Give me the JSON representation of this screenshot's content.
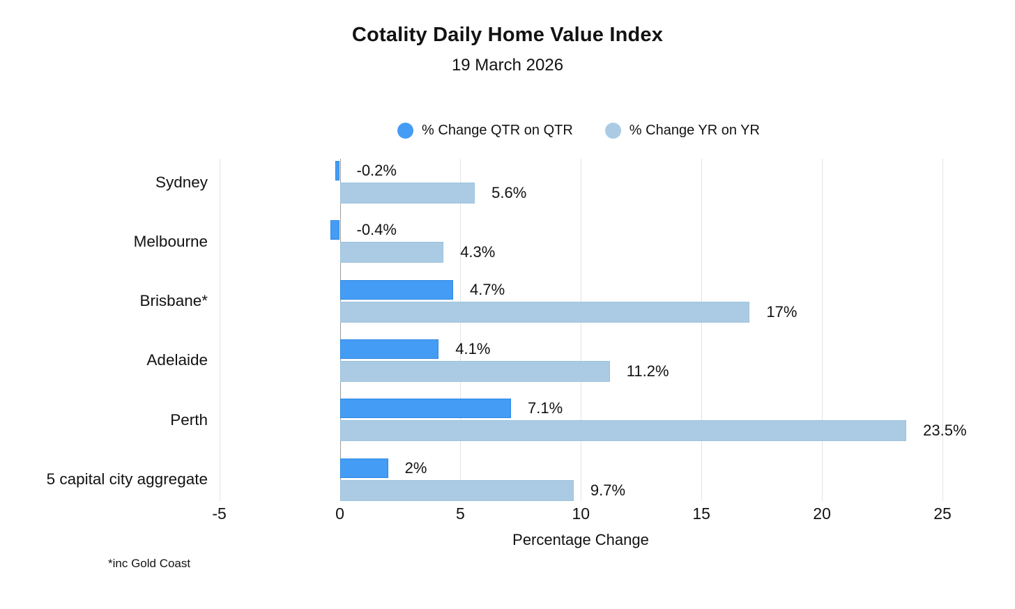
{
  "header": {
    "title": "Cotality Daily Home Value Index",
    "subtitle": "19 March 2026"
  },
  "legend": [
    {
      "label": "% Change QTR on QTR",
      "color": "#459cf4"
    },
    {
      "label": "% Change YR on YR",
      "color": "#aacbe3"
    }
  ],
  "chart_data": {
    "type": "bar",
    "orientation": "horizontal",
    "title": "Cotality Daily Home Value Index",
    "subtitle": "19 March 2026",
    "categories": [
      "Sydney",
      "Melbourne",
      "Brisbane*",
      "Adelaide",
      "Perth",
      "5 capital city aggregate"
    ],
    "series": [
      {
        "name": "% Change QTR on QTR",
        "key": "qtr",
        "color": "#459cf4",
        "border_color": "#2c87e2",
        "values": [
          -0.2,
          -0.4,
          4.7,
          4.1,
          7.1,
          2
        ],
        "labels": [
          "-0.2%",
          "-0.4%",
          "4.7%",
          "4.1%",
          "7.1%",
          "2%"
        ]
      },
      {
        "name": "% Change YR on YR",
        "key": "yr",
        "color": "#aacbe3",
        "border_color": "#9cc2dc",
        "values": [
          5.6,
          4.3,
          17,
          11.2,
          23.5,
          9.7
        ],
        "labels": [
          "5.6%",
          "4.3%",
          "17%",
          "11.2%",
          "23.5%",
          "9.7%"
        ]
      }
    ],
    "xlabel": "Percentage Change",
    "xticks": [
      -5,
      0,
      5,
      10,
      15,
      20,
      25
    ],
    "xlim": [
      -5,
      26.5
    ],
    "grid": true,
    "legend_position": "top",
    "gridline_color": "#e3e3e3",
    "zero_line_color": "#9b9b9b"
  },
  "footnote": "*inc Gold Coast"
}
